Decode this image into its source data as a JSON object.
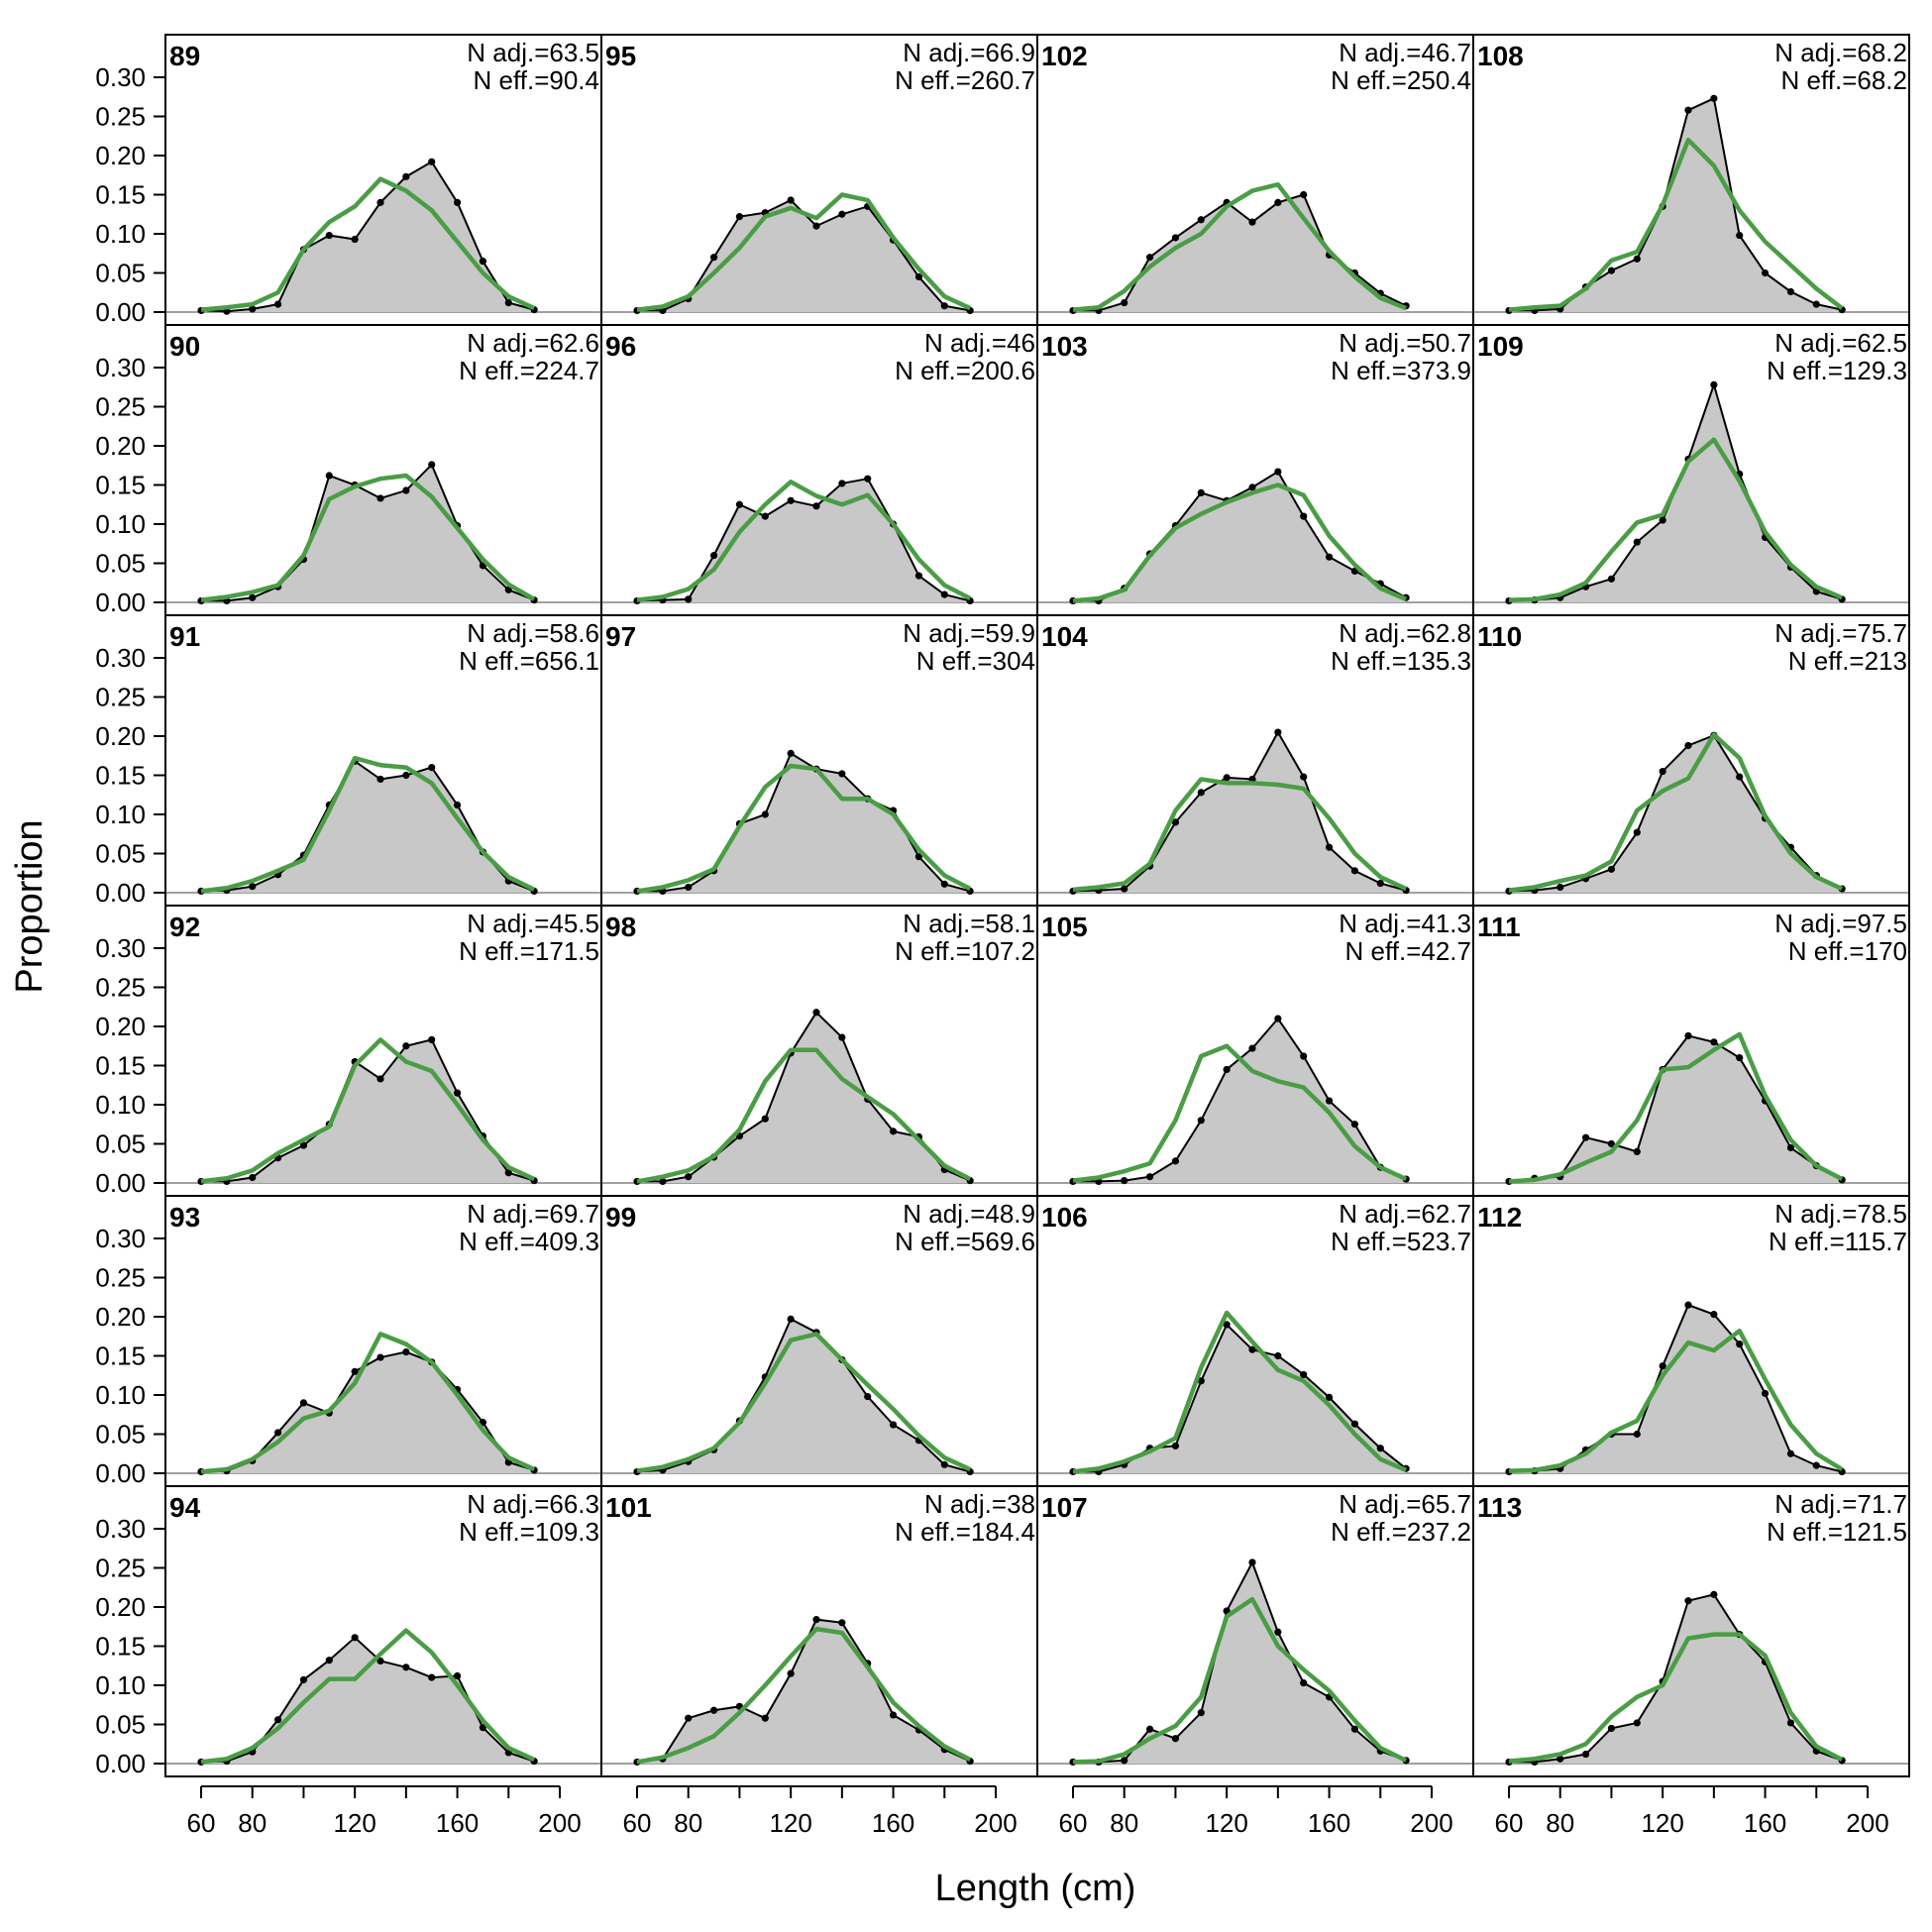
{
  "figure": {
    "xlabel": "Length (cm)",
    "ylabel": "Proportion",
    "colors": {
      "observed_fill": "#c8c8c8",
      "observed_line": "#000000",
      "expected_line": "#4a9d45",
      "frame": "#000000",
      "zero_line": "#a0a0a0"
    }
  },
  "chart_data": {
    "type": "area",
    "layout": {
      "rows": 6,
      "cols": 4,
      "order": "column-major"
    },
    "x": [
      60,
      70,
      80,
      90,
      100,
      110,
      120,
      130,
      140,
      150,
      160,
      170,
      180,
      190
    ],
    "xlim": [
      60,
      200
    ],
    "xticks": [
      60,
      80,
      120,
      160,
      200
    ],
    "ylim": [
      0,
      0.3
    ],
    "yticks": [
      "0.00",
      "0.05",
      "0.10",
      "0.15",
      "0.20",
      "0.25",
      "0.30"
    ],
    "series_styles": [
      {
        "key": "observed",
        "style": "grey filled area with black line and points"
      },
      {
        "key": "expected",
        "style": "green line"
      }
    ],
    "panels": [
      {
        "id": "89",
        "n_adj": "N adj.=63.5",
        "n_eff": "N eff.=90.4",
        "observed": [
          0.002,
          0.001,
          0.004,
          0.01,
          0.08,
          0.098,
          0.093,
          0.14,
          0.173,
          0.192,
          0.14,
          0.065,
          0.012,
          0.003
        ],
        "expected": [
          0.003,
          0.006,
          0.01,
          0.025,
          0.08,
          0.115,
          0.135,
          0.17,
          0.155,
          0.13,
          0.09,
          0.05,
          0.02,
          0.005
        ]
      },
      {
        "id": "90",
        "n_adj": "N adj.=62.6",
        "n_eff": "N eff.=224.7",
        "observed": [
          0.002,
          0.002,
          0.006,
          0.02,
          0.055,
          0.162,
          0.15,
          0.133,
          0.143,
          0.176,
          0.098,
          0.047,
          0.016,
          0.003
        ],
        "expected": [
          0.003,
          0.007,
          0.013,
          0.022,
          0.06,
          0.132,
          0.148,
          0.158,
          0.162,
          0.135,
          0.095,
          0.055,
          0.023,
          0.004
        ]
      },
      {
        "id": "91",
        "n_adj": "N adj.=58.6",
        "n_eff": "N eff.=656.1",
        "observed": [
          0.002,
          0.003,
          0.008,
          0.023,
          0.048,
          0.112,
          0.168,
          0.145,
          0.15,
          0.16,
          0.112,
          0.052,
          0.015,
          0.002
        ],
        "expected": [
          0.002,
          0.006,
          0.015,
          0.028,
          0.042,
          0.105,
          0.172,
          0.163,
          0.16,
          0.14,
          0.095,
          0.052,
          0.02,
          0.004
        ]
      },
      {
        "id": "92",
        "n_adj": "N adj.=45.5",
        "n_eff": "N eff.=171.5",
        "observed": [
          0.002,
          0.002,
          0.007,
          0.032,
          0.048,
          0.075,
          0.155,
          0.133,
          0.175,
          0.183,
          0.115,
          0.06,
          0.013,
          0.003
        ],
        "expected": [
          0.002,
          0.006,
          0.016,
          0.038,
          0.055,
          0.072,
          0.15,
          0.183,
          0.155,
          0.143,
          0.1,
          0.055,
          0.02,
          0.005
        ]
      },
      {
        "id": "93",
        "n_adj": "N adj.=69.7",
        "n_eff": "N eff.=409.3",
        "observed": [
          0.002,
          0.003,
          0.016,
          0.052,
          0.09,
          0.077,
          0.13,
          0.148,
          0.155,
          0.142,
          0.107,
          0.065,
          0.014,
          0.004
        ],
        "expected": [
          0.002,
          0.005,
          0.018,
          0.04,
          0.07,
          0.08,
          0.115,
          0.178,
          0.165,
          0.142,
          0.1,
          0.055,
          0.02,
          0.005
        ]
      },
      {
        "id": "94",
        "n_adj": "N adj.=66.3",
        "n_eff": "N eff.=109.3",
        "observed": [
          0.002,
          0.003,
          0.015,
          0.056,
          0.107,
          0.132,
          0.161,
          0.131,
          0.123,
          0.11,
          0.112,
          0.046,
          0.014,
          0.003
        ],
        "expected": [
          0.002,
          0.006,
          0.02,
          0.045,
          0.078,
          0.108,
          0.108,
          0.14,
          0.17,
          0.142,
          0.1,
          0.055,
          0.02,
          0.005
        ]
      },
      {
        "id": "95",
        "n_adj": "N adj.=66.9",
        "n_eff": "N eff.=260.7",
        "observed": [
          0.002,
          0.002,
          0.017,
          0.07,
          0.122,
          0.127,
          0.143,
          0.11,
          0.125,
          0.135,
          0.092,
          0.045,
          0.008,
          0.002
        ],
        "expected": [
          0.003,
          0.007,
          0.02,
          0.05,
          0.082,
          0.122,
          0.133,
          0.12,
          0.15,
          0.143,
          0.095,
          0.055,
          0.02,
          0.005
        ]
      },
      {
        "id": "96",
        "n_adj": "N adj.=46",
        "n_eff": "N eff.=200.6",
        "observed": [
          0.002,
          0.003,
          0.004,
          0.06,
          0.125,
          0.11,
          0.13,
          0.123,
          0.152,
          0.158,
          0.1,
          0.034,
          0.01,
          0.002
        ],
        "expected": [
          0.003,
          0.007,
          0.017,
          0.042,
          0.09,
          0.125,
          0.154,
          0.136,
          0.125,
          0.137,
          0.1,
          0.055,
          0.022,
          0.005
        ]
      },
      {
        "id": "97",
        "n_adj": "N adj.=59.9",
        "n_eff": "N eff.=304",
        "observed": [
          0.002,
          0.002,
          0.007,
          0.028,
          0.088,
          0.1,
          0.178,
          0.158,
          0.152,
          0.12,
          0.105,
          0.046,
          0.011,
          0.002
        ],
        "expected": [
          0.002,
          0.007,
          0.016,
          0.03,
          0.085,
          0.135,
          0.162,
          0.158,
          0.12,
          0.12,
          0.1,
          0.055,
          0.022,
          0.005
        ]
      },
      {
        "id": "98",
        "n_adj": "N adj.=58.1",
        "n_eff": "N eff.=107.2",
        "observed": [
          0.002,
          0.002,
          0.008,
          0.033,
          0.06,
          0.082,
          0.166,
          0.218,
          0.186,
          0.107,
          0.066,
          0.059,
          0.017,
          0.003
        ],
        "expected": [
          0.002,
          0.008,
          0.016,
          0.034,
          0.068,
          0.13,
          0.17,
          0.17,
          0.133,
          0.11,
          0.088,
          0.055,
          0.022,
          0.005
        ]
      },
      {
        "id": "99",
        "n_adj": "N adj.=48.9",
        "n_eff": "N eff.=569.6",
        "observed": [
          0.002,
          0.004,
          0.015,
          0.03,
          0.067,
          0.123,
          0.197,
          0.18,
          0.145,
          0.098,
          0.062,
          0.042,
          0.011,
          0.002
        ],
        "expected": [
          0.003,
          0.008,
          0.018,
          0.032,
          0.065,
          0.115,
          0.17,
          0.178,
          0.145,
          0.113,
          0.082,
          0.048,
          0.02,
          0.005
        ]
      },
      {
        "id": "101",
        "n_adj": "N adj.=38",
        "n_eff": "N eff.=184.4",
        "observed": [
          0.002,
          0.006,
          0.058,
          0.068,
          0.073,
          0.058,
          0.115,
          0.184,
          0.18,
          0.128,
          0.062,
          0.043,
          0.018,
          0.003
        ],
        "expected": [
          0.002,
          0.008,
          0.02,
          0.035,
          0.065,
          0.1,
          0.137,
          0.172,
          0.167,
          0.123,
          0.078,
          0.048,
          0.022,
          0.005
        ]
      },
      {
        "id": "102",
        "n_adj": "N adj.=46.7",
        "n_eff": "N eff.=250.4",
        "observed": [
          0.002,
          0.002,
          0.012,
          0.07,
          0.095,
          0.118,
          0.14,
          0.115,
          0.14,
          0.15,
          0.073,
          0.05,
          0.024,
          0.008
        ],
        "expected": [
          0.003,
          0.006,
          0.027,
          0.058,
          0.082,
          0.1,
          0.135,
          0.155,
          0.163,
          0.12,
          0.078,
          0.045,
          0.018,
          0.005
        ]
      },
      {
        "id": "103",
        "n_adj": "N adj.=50.7",
        "n_eff": "N eff.=373.9",
        "observed": [
          0.002,
          0.002,
          0.018,
          0.062,
          0.098,
          0.14,
          0.13,
          0.147,
          0.167,
          0.11,
          0.058,
          0.04,
          0.024,
          0.006
        ],
        "expected": [
          0.002,
          0.005,
          0.016,
          0.06,
          0.095,
          0.113,
          0.128,
          0.14,
          0.15,
          0.137,
          0.085,
          0.048,
          0.018,
          0.004
        ]
      },
      {
        "id": "104",
        "n_adj": "N adj.=62.8",
        "n_eff": "N eff.=135.3",
        "observed": [
          0.002,
          0.003,
          0.005,
          0.034,
          0.09,
          0.128,
          0.147,
          0.145,
          0.205,
          0.148,
          0.058,
          0.028,
          0.012,
          0.003
        ],
        "expected": [
          0.004,
          0.007,
          0.012,
          0.037,
          0.105,
          0.145,
          0.14,
          0.14,
          0.138,
          0.133,
          0.095,
          0.05,
          0.02,
          0.005
        ]
      },
      {
        "id": "105",
        "n_adj": "N adj.=41.3",
        "n_eff": "N eff.=42.7",
        "observed": [
          0.002,
          0.002,
          0.003,
          0.008,
          0.028,
          0.08,
          0.145,
          0.172,
          0.21,
          0.162,
          0.105,
          0.075,
          0.02,
          0.005
        ],
        "expected": [
          0.003,
          0.007,
          0.015,
          0.025,
          0.08,
          0.162,
          0.175,
          0.143,
          0.13,
          0.122,
          0.09,
          0.047,
          0.02,
          0.005
        ]
      },
      {
        "id": "106",
        "n_adj": "N adj.=62.7",
        "n_eff": "N eff.=523.7",
        "observed": [
          0.002,
          0.002,
          0.011,
          0.032,
          0.035,
          0.118,
          0.19,
          0.158,
          0.15,
          0.126,
          0.097,
          0.063,
          0.032,
          0.006
        ],
        "expected": [
          0.002,
          0.006,
          0.015,
          0.028,
          0.045,
          0.135,
          0.205,
          0.168,
          0.132,
          0.118,
          0.087,
          0.05,
          0.018,
          0.004
        ]
      },
      {
        "id": "107",
        "n_adj": "N adj.=65.7",
        "n_eff": "N eff.=237.2",
        "observed": [
          0.002,
          0.002,
          0.004,
          0.044,
          0.032,
          0.065,
          0.195,
          0.257,
          0.168,
          0.103,
          0.085,
          0.044,
          0.016,
          0.004
        ],
        "expected": [
          0.002,
          0.003,
          0.012,
          0.032,
          0.048,
          0.085,
          0.188,
          0.21,
          0.15,
          0.12,
          0.093,
          0.055,
          0.02,
          0.004
        ]
      },
      {
        "id": "108",
        "n_adj": "N adj.=68.2",
        "n_eff": "N eff.=68.2",
        "observed": [
          0.002,
          0.002,
          0.004,
          0.032,
          0.053,
          0.068,
          0.135,
          0.258,
          0.273,
          0.098,
          0.05,
          0.026,
          0.01,
          0.003
        ],
        "expected": [
          0.003,
          0.006,
          0.008,
          0.03,
          0.066,
          0.077,
          0.137,
          0.22,
          0.187,
          0.13,
          0.09,
          0.06,
          0.03,
          0.005
        ]
      },
      {
        "id": "109",
        "n_adj": "N adj.=62.5",
        "n_eff": "N eff.=129.3",
        "observed": [
          0.002,
          0.003,
          0.006,
          0.02,
          0.03,
          0.077,
          0.105,
          0.183,
          0.278,
          0.164,
          0.083,
          0.045,
          0.014,
          0.004
        ],
        "expected": [
          0.003,
          0.004,
          0.01,
          0.025,
          0.065,
          0.102,
          0.112,
          0.18,
          0.208,
          0.155,
          0.09,
          0.048,
          0.02,
          0.006
        ]
      },
      {
        "id": "110",
        "n_adj": "N adj.=75.7",
        "n_eff": "N eff.=213",
        "observed": [
          0.002,
          0.003,
          0.007,
          0.018,
          0.03,
          0.077,
          0.155,
          0.188,
          0.201,
          0.148,
          0.095,
          0.058,
          0.022,
          0.005
        ],
        "expected": [
          0.003,
          0.007,
          0.015,
          0.022,
          0.04,
          0.105,
          0.13,
          0.146,
          0.202,
          0.172,
          0.098,
          0.05,
          0.02,
          0.005
        ]
      },
      {
        "id": "111",
        "n_adj": "N adj.=97.5",
        "n_eff": "N eff.=170",
        "observed": [
          0.002,
          0.006,
          0.008,
          0.058,
          0.05,
          0.04,
          0.145,
          0.188,
          0.18,
          0.16,
          0.105,
          0.045,
          0.022,
          0.004
        ],
        "expected": [
          0.002,
          0.004,
          0.011,
          0.026,
          0.04,
          0.08,
          0.145,
          0.148,
          0.17,
          0.19,
          0.112,
          0.055,
          0.022,
          0.005
        ]
      },
      {
        "id": "112",
        "n_adj": "N adj.=78.5",
        "n_eff": "N eff.=115.7",
        "observed": [
          0.002,
          0.003,
          0.006,
          0.03,
          0.05,
          0.05,
          0.137,
          0.215,
          0.203,
          0.165,
          0.102,
          0.025,
          0.01,
          0.002
        ],
        "expected": [
          0.003,
          0.004,
          0.01,
          0.025,
          0.052,
          0.067,
          0.125,
          0.167,
          0.157,
          0.182,
          0.12,
          0.062,
          0.025,
          0.005
        ]
      },
      {
        "id": "113",
        "n_adj": "N adj.=71.7",
        "n_eff": "N eff.=121.5",
        "observed": [
          0.002,
          0.002,
          0.006,
          0.012,
          0.045,
          0.052,
          0.105,
          0.208,
          0.216,
          0.165,
          0.13,
          0.052,
          0.016,
          0.004
        ],
        "expected": [
          0.003,
          0.006,
          0.012,
          0.025,
          0.06,
          0.085,
          0.1,
          0.16,
          0.165,
          0.165,
          0.138,
          0.065,
          0.022,
          0.005
        ]
      }
    ]
  }
}
